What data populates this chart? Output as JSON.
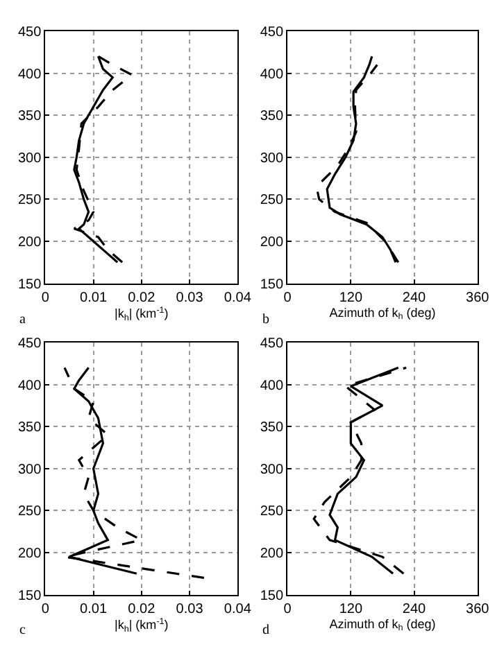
{
  "chart_data": [
    {
      "type": "line",
      "xlabel": "|k$_{h}$| (km$^{-1}$)",
      "annotations": [
        "a"
      ],
      "xlim": [
        0,
        0.04
      ],
      "xticks": [
        0,
        0.01,
        0.02,
        0.03,
        0.04
      ],
      "ylim": [
        150,
        450
      ],
      "yticks": [
        150,
        200,
        250,
        300,
        350,
        400,
        450
      ],
      "grid": true,
      "series": [
        {
          "color": "#000000",
          "line_style": "solid",
          "x": [
            0.015,
            0.012,
            0.01,
            0.007,
            0.008,
            0.009,
            0.008,
            0.007,
            0.006,
            0.0065,
            0.007,
            0.008,
            0.01,
            0.012,
            0.014,
            0.012,
            0.011
          ],
          "values": [
            175,
            190,
            200,
            215,
            220,
            235,
            250,
            270,
            285,
            300,
            320,
            340,
            360,
            380,
            395,
            405,
            420
          ]
        },
        {
          "color": "#000000",
          "line_style": "dashed",
          "x": [
            0.016,
            0.013,
            0.011,
            0.006,
            0.009,
            0.01,
            0.008,
            0.0065,
            0.007,
            0.0075,
            0.011,
            0.014,
            0.018,
            0.014,
            0.011
          ],
          "values": [
            175,
            190,
            205,
            215,
            225,
            235,
            260,
            285,
            310,
            340,
            360,
            380,
            398,
            410,
            420
          ]
        }
      ]
    },
    {
      "type": "line",
      "xlabel": "Azimuth of k$_{h}$ (deg)",
      "annotations": [
        "b"
      ],
      "xlim": [
        0,
        360
      ],
      "xticks": [
        0,
        120,
        240,
        360
      ],
      "ylim": [
        150,
        450
      ],
      "yticks": [
        150,
        200,
        250,
        300,
        350,
        400,
        450
      ],
      "grid": true,
      "series": [
        {
          "color": "#000000",
          "line_style": "solid",
          "x": [
            205,
            195,
            180,
            150,
            100,
            80,
            75,
            90,
            110,
            125,
            130,
            125,
            125,
            145,
            155,
            160
          ],
          "values": [
            175,
            190,
            205,
            220,
            232,
            240,
            262,
            280,
            300,
            320,
            340,
            360,
            378,
            395,
            410,
            420
          ]
        },
        {
          "color": "#000000",
          "line_style": "dashed",
          "x": [
            210,
            185,
            150,
            90,
            60,
            55,
            95,
            115,
            130,
            128,
            130,
            158,
            170
          ],
          "values": [
            175,
            200,
            222,
            235,
            250,
            265,
            290,
            310,
            330,
            360,
            380,
            400,
            410
          ]
        }
      ]
    },
    {
      "type": "line",
      "xlabel": "|k$_{h}$| (km$^{-1}$)",
      "annotations": [
        "c"
      ],
      "xlim": [
        0,
        0.04
      ],
      "xticks": [
        0,
        0.01,
        0.02,
        0.03,
        0.04
      ],
      "ylim": [
        150,
        450
      ],
      "yticks": [
        150,
        200,
        250,
        300,
        350,
        400,
        450
      ],
      "grid": true,
      "series": [
        {
          "color": "#000000",
          "line_style": "solid",
          "x": [
            0.019,
            0.012,
            0.005,
            0.009,
            0.013,
            0.011,
            0.01,
            0.011,
            0.01,
            0.012,
            0.011,
            0.009,
            0.006,
            0.007,
            0.009
          ],
          "values": [
            175,
            185,
            195,
            205,
            215,
            235,
            250,
            270,
            300,
            330,
            360,
            380,
            395,
            405,
            420
          ]
        },
        {
          "color": "#000000",
          "line_style": "dashed",
          "x": [
            0.033,
            0.01,
            0.004,
            0.02,
            0.015,
            0.01,
            0.008,
            0.009,
            0.007,
            0.013,
            0.009,
            0.01,
            0.006,
            0.004
          ],
          "values": [
            170,
            190,
            195,
            215,
            230,
            250,
            270,
            290,
            310,
            340,
            360,
            380,
            395,
            420
          ]
        }
      ]
    },
    {
      "type": "line",
      "xlabel": "Azimuth of k$_{h}$ (deg)",
      "annotations": [
        "d"
      ],
      "xlim": [
        0,
        360
      ],
      "xticks": [
        0,
        120,
        240,
        360
      ],
      "ylim": [
        150,
        450
      ],
      "yticks": [
        150,
        200,
        250,
        300,
        350,
        400,
        450
      ],
      "grid": true,
      "series": [
        {
          "color": "#000000",
          "line_style": "solid",
          "x": [
            200,
            160,
            90,
            95,
            80,
            95,
            130,
            145,
            120,
            120,
            180,
            120,
            210
          ],
          "values": [
            175,
            195,
            215,
            230,
            245,
            270,
            290,
            310,
            330,
            355,
            375,
            398,
            420
          ]
        },
        {
          "color": "#000000",
          "line_style": "dashed",
          "x": [
            220,
            180,
            80,
            50,
            70,
            120,
            140,
            140,
            120,
            165,
            110,
            225
          ],
          "values": [
            175,
            195,
            215,
            240,
            260,
            290,
            310,
            330,
            355,
            370,
            398,
            420
          ]
        }
      ]
    }
  ]
}
